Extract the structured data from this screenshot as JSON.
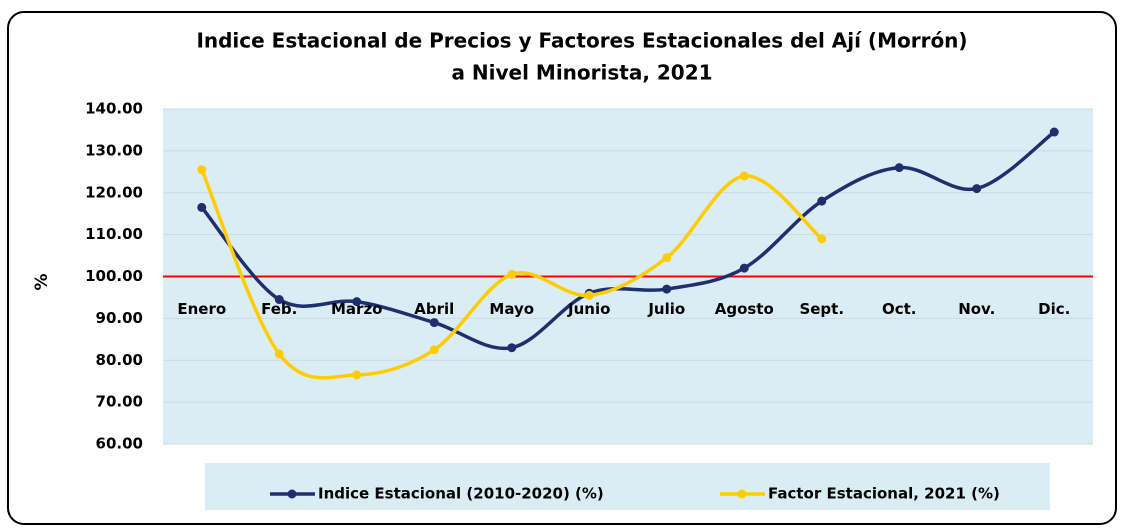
{
  "chart_data": {
    "type": "line",
    "title": [
      "Indice Estacional de Precios y Factores Estacionales del Ají (Morrón)",
      "a Nivel Minorista, 2021"
    ],
    "y_label": "%",
    "categories": [
      "Enero",
      "Feb.",
      "Marzo",
      "Abril",
      "Mayo",
      "Junio",
      "Julio",
      "Agosto",
      "Sept.",
      "Oct.",
      "Nov.",
      "Dic."
    ],
    "series": [
      {
        "name": "Indice Estacional (2010-2020) (%)",
        "color": "#1f2f6e",
        "values": [
          116.5,
          94.5,
          94,
          89,
          83,
          96,
          97,
          102,
          118,
          126,
          121,
          134.5
        ]
      },
      {
        "name": "Factor Estacional, 2021 (%)",
        "color": "#ffcc00",
        "values": [
          125.5,
          81.5,
          76.5,
          82.5,
          100.5,
          95.5,
          104.5,
          124,
          109,
          null,
          null,
          null
        ]
      }
    ],
    "ylim": [
      60,
      140
    ],
    "yticks": [
      {
        "value": 60,
        "label": "60.00"
      },
      {
        "value": 70,
        "label": "70.00"
      },
      {
        "value": 80,
        "label": "80.00"
      },
      {
        "value": 90,
        "label": "90.00"
      },
      {
        "value": 100,
        "label": "100.00"
      },
      {
        "value": 110,
        "label": "110.00"
      },
      {
        "value": 120,
        "label": "120.00"
      },
      {
        "value": 130,
        "label": "130.00"
      },
      {
        "value": 140,
        "label": "140.00"
      }
    ],
    "grid": true,
    "reference_line": 100,
    "reference_color": "#ff0000",
    "smooth": true,
    "legend": "bottom"
  }
}
